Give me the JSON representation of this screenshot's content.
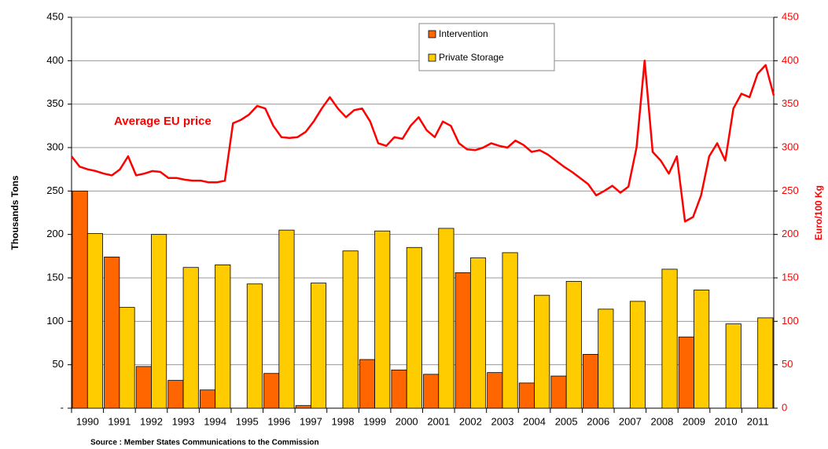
{
  "chart_data": {
    "type": "bar",
    "categories": [
      "1990",
      "1991",
      "1992",
      "1993",
      "1994",
      "1995",
      "1996",
      "1997",
      "1998",
      "1999",
      "2000",
      "2001",
      "2002",
      "2003",
      "2004",
      "2005",
      "2006",
      "2007",
      "2008",
      "2009",
      "2010",
      "2011"
    ],
    "series": [
      {
        "name": "Intervention",
        "color": "#ff6600",
        "values": [
          250,
          174,
          48,
          32,
          21,
          null,
          40,
          3,
          null,
          56,
          44,
          39,
          156,
          41,
          29,
          37,
          62,
          null,
          null,
          82,
          null,
          null
        ]
      },
      {
        "name": "Private Storage",
        "color": "#ffcc00",
        "values": [
          201,
          116,
          200,
          162,
          165,
          143,
          205,
          144,
          181,
          204,
          185,
          207,
          173,
          179,
          130,
          146,
          114,
          123,
          160,
          136,
          97,
          104
        ]
      }
    ],
    "line": {
      "name": "Average EU price",
      "color": "#ff0000",
      "axis": "y2",
      "values": [
        290,
        278,
        275,
        273,
        270,
        268,
        275,
        290,
        268,
        270,
        273,
        272,
        265,
        265,
        263,
        262,
        262,
        260,
        260,
        262,
        328,
        332,
        338,
        348,
        345,
        325,
        312,
        311,
        312,
        318,
        330,
        345,
        358,
        345,
        335,
        343,
        345,
        330,
        305,
        302,
        312,
        310,
        325,
        335,
        320,
        312,
        330,
        325,
        305,
        298,
        297,
        300,
        305,
        302,
        300,
        308,
        303,
        295,
        297,
        292,
        285,
        278,
        272,
        265,
        258,
        245,
        250,
        256,
        248,
        255,
        300,
        400,
        295,
        285,
        270,
        290,
        215,
        220,
        245,
        290,
        305,
        285,
        345,
        362,
        358,
        385,
        395,
        360
      ]
    },
    "ylim": [
      0,
      450
    ],
    "yticks": [
      {
        "value": 0,
        "label": "-"
      },
      50,
      100,
      150,
      200,
      250,
      300,
      350,
      400,
      450
    ],
    "y2lim": [
      0,
      450
    ],
    "y2ticks": [
      0,
      50,
      100,
      150,
      200,
      250,
      300,
      350,
      400,
      450
    ],
    "ylabel": "Thousands Tons",
    "y2label": "Euro/100 Kg",
    "source": "Source : Member States Communications to the Commission",
    "grid": true,
    "legend": "top-center"
  }
}
